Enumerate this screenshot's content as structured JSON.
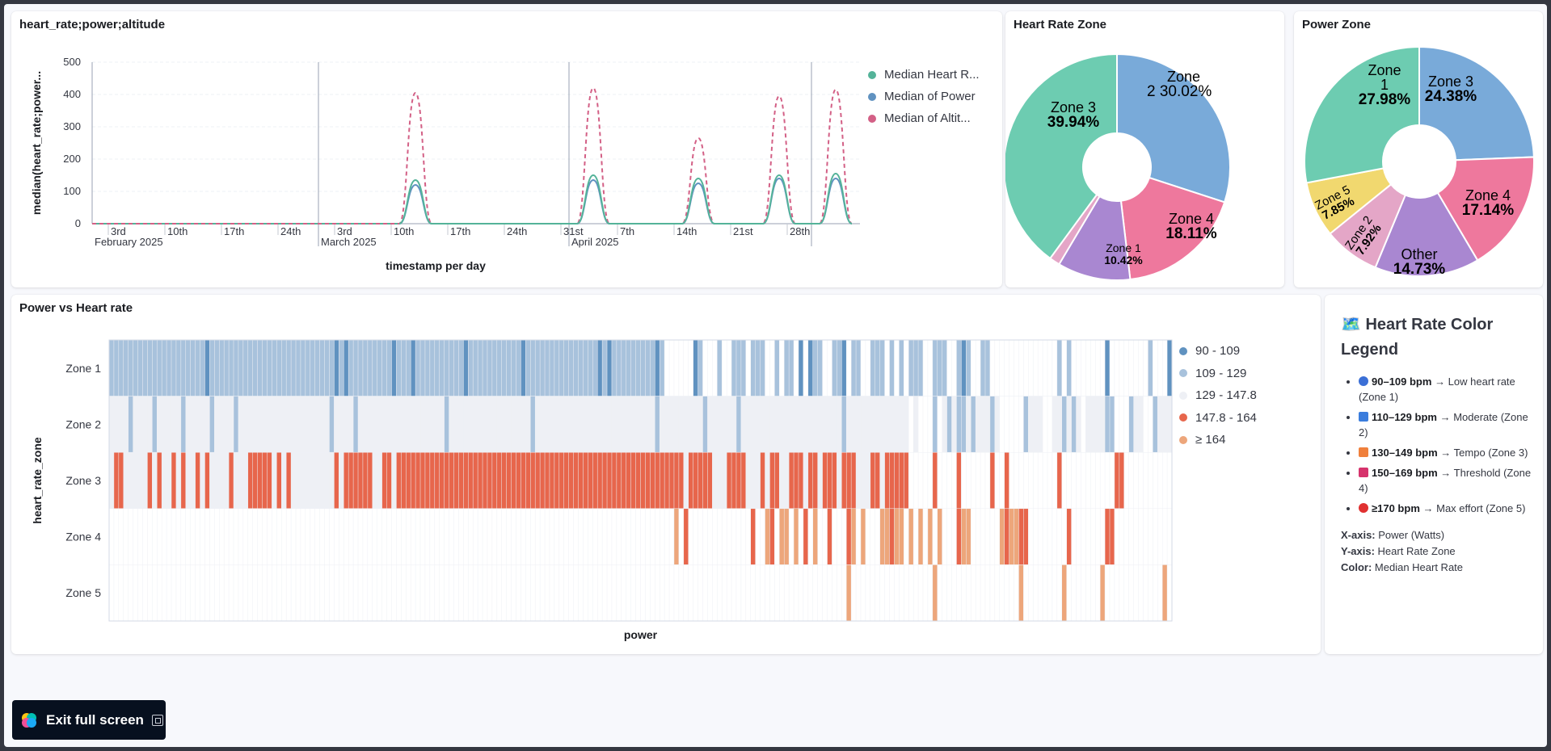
{
  "app": {
    "exit_full_screen_label": "Exit full screen"
  },
  "line_panel": {
    "title": "heart_rate;power;altitude",
    "legend": [
      "Median Heart R...",
      "Median of Power",
      "Median of Altit..."
    ]
  },
  "hr_zone_panel": {
    "title": "Heart Rate Zone"
  },
  "power_zone_panel": {
    "title": "Power Zone"
  },
  "heatmap_panel": {
    "title": "Power vs Heart rate",
    "legend": [
      "90 - 109",
      "109 - 129",
      "129 - 147.8",
      "147.8 - 164",
      "≥ 164"
    ]
  },
  "legend_panel": {
    "heading": "🗺️ Heart Rate Color Legend",
    "items": [
      {
        "range": "90–109 bpm",
        "desc": "→ Low heart rate (Zone 1)",
        "color": "#3b6fd6",
        "shape": "circle"
      },
      {
        "range": "110–129 bpm",
        "desc": "→ Moderate (Zone 2)",
        "color": "#3b7ddd",
        "shape": "square"
      },
      {
        "range": "130–149 bpm",
        "desc": "→ Tempo (Zone 3)",
        "color": "#f0803c",
        "shape": "square"
      },
      {
        "range": "150–169 bpm",
        "desc": "→ Threshold (Zone 4)",
        "color": "#d6336c",
        "shape": "square"
      },
      {
        "range": "≥170 bpm",
        "desc": "→ Max effort (Zone 5)",
        "color": "#e03131",
        "shape": "circle"
      }
    ],
    "xaxis_label": "X-axis:",
    "xaxis_value": "Power (Watts)",
    "yaxis_label": "Y-axis:",
    "yaxis_value": "Heart Rate Zone",
    "color_label": "Color:",
    "color_value": "Median Heart Rate"
  },
  "chart_data": [
    {
      "type": "line",
      "title": "heart_rate;power;altitude",
      "xlabel": "timestamp per day",
      "ylabel": "median(heart_rate;power...",
      "ylim": [
        0,
        500
      ],
      "yticks": [
        "0",
        "100",
        "200",
        "300",
        "400",
        "500"
      ],
      "xticks": [
        "3rd",
        "10th",
        "17th",
        "24th",
        "3rd",
        "10th",
        "17th",
        "24th",
        "31st",
        "7th",
        "14th",
        "21st",
        "28th"
      ],
      "month_labels": [
        "February 2025",
        "March 2025",
        "April 2025"
      ],
      "x": [
        "2025-02-01",
        "2025-03-11",
        "2025-03-13",
        "2025-03-15",
        "2025-04-02",
        "2025-04-04",
        "2025-04-06",
        "2025-04-15",
        "2025-04-17",
        "2025-04-19",
        "2025-04-25",
        "2025-04-27",
        "2025-04-29",
        "2025-05-02",
        "2025-05-04",
        "2025-05-06"
      ],
      "series": [
        {
          "name": "Median Heart R...",
          "color": "#54b399",
          "values": [
            0,
            0,
            135,
            0,
            0,
            150,
            0,
            0,
            140,
            0,
            0,
            150,
            0,
            0,
            155,
            0
          ]
        },
        {
          "name": "Median of Power",
          "color": "#6092c0",
          "values": [
            0,
            0,
            120,
            0,
            0,
            135,
            0,
            0,
            125,
            0,
            0,
            140,
            0,
            0,
            140,
            0
          ]
        },
        {
          "name": "Median of Altit...",
          "color": "#d36086",
          "values": [
            0,
            0,
            405,
            0,
            0,
            420,
            0,
            0,
            265,
            0,
            0,
            395,
            0,
            0,
            415,
            0
          ]
        }
      ],
      "legend": "right",
      "grid": true
    },
    {
      "type": "pie",
      "title": "Heart Rate Zone",
      "slices": [
        {
          "label": "Zone 2",
          "value": 30.02,
          "color": "#79aad9"
        },
        {
          "label": "Zone 4",
          "value": 18.11,
          "color": "#ee789d"
        },
        {
          "label": "Zone 1",
          "value": 10.42,
          "color": "#a987d1"
        },
        {
          "label": "",
          "value": 1.51,
          "color": "#e4a6c7"
        },
        {
          "label": "Zone 3",
          "value": 39.94,
          "color": "#6dccb1"
        }
      ]
    },
    {
      "type": "pie",
      "title": "Power Zone",
      "slices": [
        {
          "label": "Zone 3",
          "value": 24.38,
          "color": "#79aad9"
        },
        {
          "label": "Zone 4",
          "value": 17.14,
          "color": "#ee789d"
        },
        {
          "label": "Other",
          "value": 14.73,
          "color": "#a987d1"
        },
        {
          "label": "Zone 2",
          "value": 7.92,
          "color": "#e4a6c7"
        },
        {
          "label": "Zone 5",
          "value": 7.85,
          "color": "#f1d86f"
        },
        {
          "label": "Zone 1",
          "value": 27.98,
          "color": "#6dccb1"
        }
      ]
    },
    {
      "type": "heatmap",
      "title": "Power vs Heart rate",
      "xlabel": "power",
      "ylabel": "heart_rate_zone",
      "rows": [
        "Zone 1",
        "Zone 2",
        "Zone 3",
        "Zone 4",
        "Zone 5"
      ],
      "legend": [
        {
          "label": "90 - 109",
          "color": "#6092c0"
        },
        {
          "label": "109 - 129",
          "color": "#a8c2dc"
        },
        {
          "label": "129 - 147.8",
          "color": "#eef0f5"
        },
        {
          "label": "147.8 - 164",
          "color": "#e7664c"
        },
        {
          "label": "≥ 164",
          "color": "#eda67b"
        }
      ],
      "columns": 222
    }
  ]
}
